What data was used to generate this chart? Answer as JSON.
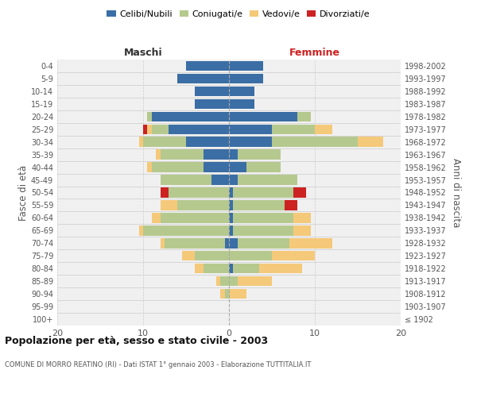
{
  "age_groups": [
    "100+",
    "95-99",
    "90-94",
    "85-89",
    "80-84",
    "75-79",
    "70-74",
    "65-69",
    "60-64",
    "55-59",
    "50-54",
    "45-49",
    "40-44",
    "35-39",
    "30-34",
    "25-29",
    "20-24",
    "15-19",
    "10-14",
    "5-9",
    "0-4"
  ],
  "birth_years": [
    "≤ 1902",
    "1903-1907",
    "1908-1912",
    "1913-1917",
    "1918-1922",
    "1923-1927",
    "1928-1932",
    "1933-1937",
    "1938-1942",
    "1943-1947",
    "1948-1952",
    "1953-1957",
    "1958-1962",
    "1963-1967",
    "1968-1972",
    "1973-1977",
    "1978-1982",
    "1983-1987",
    "1988-1992",
    "1993-1997",
    "1998-2002"
  ],
  "maschi": {
    "celibi": [
      0,
      0,
      0,
      0,
      0,
      0,
      0.5,
      0,
      0,
      0,
      0,
      2,
      3,
      3,
      5,
      7,
      9,
      4,
      4,
      6,
      5
    ],
    "coniugati": [
      0,
      0,
      0.5,
      1,
      3,
      4,
      7,
      10,
      8,
      6,
      7,
      6,
      6,
      5,
      5,
      2,
      0.5,
      0,
      0,
      0,
      0
    ],
    "vedovi": [
      0,
      0,
      0.5,
      0.5,
      1,
      1.5,
      0.5,
      0.5,
      1,
      2,
      0,
      0,
      0.5,
      0.5,
      0.5,
      0.5,
      0,
      0,
      0,
      0,
      0
    ],
    "divorziati": [
      0,
      0,
      0,
      0,
      0,
      0,
      0,
      0,
      0,
      0,
      1,
      0,
      0,
      0,
      0,
      0.5,
      0,
      0,
      0,
      0,
      0
    ]
  },
  "femmine": {
    "nubili": [
      0,
      0,
      0,
      0,
      0.5,
      0,
      1,
      0.5,
      0.5,
      0.5,
      0.5,
      1,
      2,
      1,
      5,
      5,
      8,
      3,
      3,
      4,
      4
    ],
    "coniugate": [
      0,
      0,
      0,
      1,
      3,
      5,
      6,
      7,
      7,
      6,
      7,
      7,
      4,
      5,
      10,
      5,
      1.5,
      0,
      0,
      0,
      0
    ],
    "vedove": [
      0,
      0,
      2,
      4,
      5,
      5,
      5,
      2,
      2,
      0,
      0,
      0,
      0,
      0,
      3,
      2,
      0,
      0,
      0,
      0,
      0
    ],
    "divorziate": [
      0,
      0,
      0,
      0,
      0,
      0,
      0,
      0,
      0,
      1.5,
      1.5,
      0,
      0,
      0,
      0,
      0,
      0,
      0,
      0,
      0,
      0
    ]
  },
  "colors": {
    "celibi": "#3a6ea5",
    "coniugati": "#b5c98e",
    "vedovi": "#f5c97a",
    "divorziati": "#cc2222"
  },
  "legend_labels": [
    "Celibi/Nubili",
    "Coniugati/e",
    "Vedovi/e",
    "Divorziati/e"
  ],
  "title": "Popolazione per età, sesso e stato civile - 2003",
  "subtitle": "COMUNE DI MORRO REATINO (RI) - Dati ISTAT 1° gennaio 2003 - Elaborazione TUTTITALIA.IT",
  "xlabel_left": "Maschi",
  "xlabel_right": "Femmine",
  "ylabel_left": "Fasce di età",
  "ylabel_right": "Anni di nascita",
  "xlim": 20,
  "bg_color": "#ffffff",
  "plot_bg_color": "#f0f0f0"
}
